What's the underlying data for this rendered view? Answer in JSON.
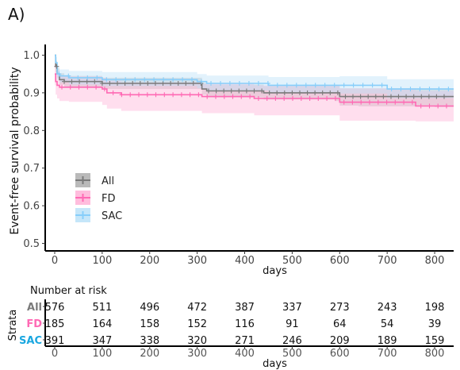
{
  "panel_label": "A)",
  "chart_data": [
    {
      "type": "line",
      "subtype": "kaplan-meier",
      "title": "",
      "xlabel": "days",
      "ylabel": "Event-free survival probability",
      "xlim": [
        -20,
        840
      ],
      "ylim": [
        0.48,
        1.02
      ],
      "x_ticks": [
        0,
        100,
        200,
        300,
        400,
        500,
        600,
        700,
        800
      ],
      "y_ticks": [
        0.5,
        0.6,
        0.7,
        0.8,
        0.9,
        1.0
      ],
      "y_tick_labels": [
        "0.5",
        "0.6",
        "0.7",
        "0.8",
        "0.9",
        "1.0"
      ],
      "grid": false,
      "legend_position": "left, lower-middle",
      "series": [
        {
          "name": "All",
          "color": "#7a7a7a",
          "band_color": "#b3b3b3",
          "x": [
            0,
            2,
            5,
            10,
            20,
            100,
            300,
            310,
            320,
            420,
            440,
            590,
            600,
            640,
            800,
            840
          ],
          "y": [
            1.0,
            0.97,
            0.95,
            0.935,
            0.93,
            0.925,
            0.925,
            0.91,
            0.905,
            0.905,
            0.9,
            0.9,
            0.89,
            0.89,
            0.89,
            0.89
          ],
          "lower": [
            1.0,
            0.955,
            0.94,
            0.922,
            0.915,
            0.91,
            0.91,
            0.895,
            0.888,
            0.888,
            0.882,
            0.878,
            0.866,
            0.864,
            0.862,
            0.862
          ],
          "upper": [
            1.0,
            0.985,
            0.965,
            0.952,
            0.945,
            0.94,
            0.94,
            0.926,
            0.922,
            0.922,
            0.918,
            0.92,
            0.912,
            0.912,
            0.912,
            0.912
          ]
        },
        {
          "name": "FD",
          "color": "#ff69b4",
          "band_color": "#ffb6d9",
          "x": [
            0,
            2,
            5,
            10,
            30,
            100,
            110,
            140,
            300,
            310,
            400,
            420,
            590,
            600,
            760,
            840
          ],
          "y": [
            0.95,
            0.93,
            0.92,
            0.915,
            0.915,
            0.91,
            0.9,
            0.895,
            0.895,
            0.89,
            0.89,
            0.885,
            0.885,
            0.875,
            0.865,
            0.865
          ],
          "lower": [
            0.92,
            0.895,
            0.885,
            0.878,
            0.876,
            0.868,
            0.858,
            0.852,
            0.852,
            0.846,
            0.846,
            0.84,
            0.84,
            0.826,
            0.824,
            0.824
          ],
          "upper": [
            0.975,
            0.958,
            0.948,
            0.944,
            0.944,
            0.94,
            0.932,
            0.928,
            0.928,
            0.924,
            0.924,
            0.92,
            0.92,
            0.912,
            0.905,
            0.905
          ]
        },
        {
          "name": "SAC",
          "color": "#87cefa",
          "band_color": "#bfe3f8",
          "x": [
            0,
            2,
            5,
            10,
            30,
            100,
            150,
            300,
            320,
            450,
            600,
            700,
            800,
            840
          ],
          "y": [
            1.0,
            0.98,
            0.95,
            0.945,
            0.94,
            0.935,
            0.935,
            0.93,
            0.925,
            0.92,
            0.92,
            0.91,
            0.91,
            0.91
          ],
          "lower": [
            1.0,
            0.965,
            0.935,
            0.928,
            0.922,
            0.918,
            0.918,
            0.912,
            0.906,
            0.9,
            0.898,
            0.886,
            0.886,
            0.886
          ],
          "upper": [
            1.0,
            0.995,
            0.968,
            0.962,
            0.958,
            0.955,
            0.955,
            0.95,
            0.946,
            0.942,
            0.944,
            0.936,
            0.936,
            0.936
          ]
        }
      ]
    },
    {
      "type": "table",
      "title": "Number at risk",
      "ylabel": "Strata",
      "xlabel": "days",
      "x": [
        0,
        100,
        200,
        300,
        400,
        500,
        600,
        700,
        800
      ],
      "x_tick_labels": [
        "0",
        "100",
        "200",
        "300",
        "400",
        "500",
        "600",
        "700",
        "800"
      ],
      "rows": [
        {
          "name": "All",
          "color": "#7a7a7a",
          "values": [
            "576",
            "511",
            "496",
            "472",
            "387",
            "337",
            "273",
            "243",
            "198"
          ]
        },
        {
          "name": "FD",
          "color": "#ff69b4",
          "values": [
            "185",
            "164",
            "158",
            "152",
            "116",
            "91",
            "64",
            "54",
            "39"
          ]
        },
        {
          "name": "SAC",
          "color": "#1aa7e0",
          "values": [
            "391",
            "347",
            "338",
            "320",
            "271",
            "246",
            "209",
            "189",
            "159"
          ]
        }
      ]
    }
  ]
}
